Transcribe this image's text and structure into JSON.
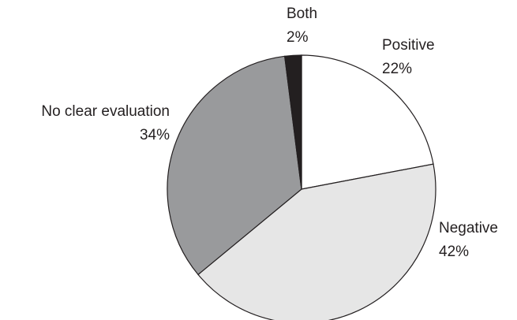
{
  "chart_data": {
    "type": "pie",
    "categories": [
      "Positive",
      "Negative",
      "No clear evaluation",
      "Both"
    ],
    "values": [
      22,
      42,
      34,
      2
    ],
    "value_labels": [
      "22%",
      "42%",
      "34%",
      "2%"
    ],
    "colors": [
      "#ffffff",
      "#e6e6e6",
      "#999a9c",
      "#231f20"
    ]
  }
}
